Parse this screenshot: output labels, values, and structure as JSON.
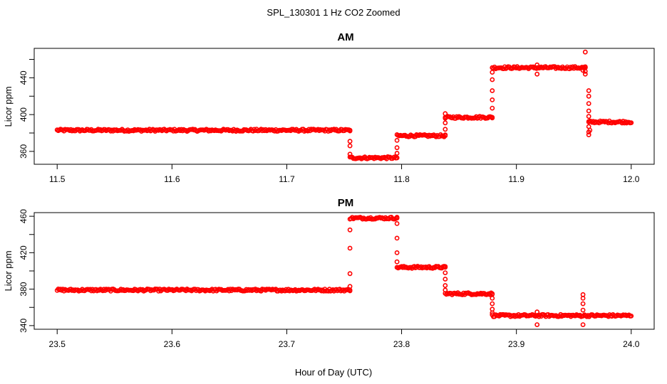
{
  "figure": {
    "title": "SPL_130301  1 Hz CO2 Zoomed",
    "xlabel": "Hour of Day (UTC)"
  },
  "colors": {
    "points": "#ff0000",
    "frame": "#000000",
    "background": "#ffffff"
  },
  "chart_data": [
    {
      "type": "scatter",
      "title": "AM",
      "xlabel": "",
      "ylabel": "Licor ppm",
      "xlim": [
        11.5,
        12.0
      ],
      "ylim": [
        346,
        472
      ],
      "xticks": [
        "11.5",
        "11.6",
        "11.7",
        "11.8",
        "11.9",
        "12.0"
      ],
      "yticks": [
        "360",
        "400",
        "440"
      ],
      "grid": false,
      "marker": "open-circle",
      "plateaus": [
        {
          "x": [
            11.5,
            11.755
          ],
          "y": 383
        },
        {
          "x": [
            11.755,
            11.796
          ],
          "y": 353
        },
        {
          "x": [
            11.796,
            11.838
          ],
          "y": 377
        },
        {
          "x": [
            11.838,
            11.879
          ],
          "y": 397
        },
        {
          "x": [
            11.879,
            11.96
          ],
          "y": 451
        },
        {
          "x": [
            11.963,
            12.0
          ],
          "y": 392
        }
      ],
      "transitions": [
        {
          "x": 11.755,
          "y": [
            383,
            371,
            366,
            357
          ]
        },
        {
          "x": 11.796,
          "y": [
            353,
            358,
            364,
            372
          ]
        },
        {
          "x": 11.838,
          "y": [
            377,
            384,
            391,
            396,
            401
          ]
        },
        {
          "x": 11.879,
          "y": [
            397,
            407,
            416,
            426,
            438,
            446
          ]
        },
        {
          "x": 11.96,
          "y": [
            451,
            468,
            452,
            447,
            444
          ]
        },
        {
          "x": 11.963,
          "y": [
            426,
            420,
            412,
            404,
            398,
            392,
            387,
            381,
            378
          ]
        }
      ],
      "outliers": [
        {
          "x": 11.918,
          "y": 454
        },
        {
          "x": 11.918,
          "y": 444
        },
        {
          "x": 11.958,
          "y": 448
        },
        {
          "x": 11.964,
          "y": 383
        }
      ]
    },
    {
      "type": "scatter",
      "title": "PM",
      "xlabel": "",
      "ylabel": "Licor ppm",
      "xlim": [
        23.5,
        24.0
      ],
      "ylim": [
        336,
        464
      ],
      "xticks": [
        "23.5",
        "23.6",
        "23.7",
        "23.8",
        "23.9",
        "24.0"
      ],
      "yticks": [
        "340",
        "380",
        "420",
        "460"
      ],
      "grid": false,
      "marker": "open-circle",
      "plateaus": [
        {
          "x": [
            23.5,
            23.755
          ],
          "y": 379
        },
        {
          "x": [
            23.755,
            23.796
          ],
          "y": 458
        },
        {
          "x": [
            23.796,
            23.838
          ],
          "y": 404
        },
        {
          "x": [
            23.838,
            23.879
          ],
          "y": 375
        },
        {
          "x": [
            23.879,
            24.0
          ],
          "y": 351
        }
      ],
      "transitions": [
        {
          "x": 23.755,
          "y": [
            379,
            383,
            397,
            425,
            445
          ]
        },
        {
          "x": 23.796,
          "y": [
            458,
            452,
            436,
            420,
            410
          ]
        },
        {
          "x": 23.838,
          "y": [
            404,
            398,
            391,
            384,
            379
          ]
        },
        {
          "x": 23.879,
          "y": [
            375,
            370,
            364,
            358,
            354
          ]
        }
      ],
      "outliers": [
        {
          "x": 23.918,
          "y": 355
        },
        {
          "x": 23.918,
          "y": 341
        },
        {
          "x": 23.958,
          "y": 374
        },
        {
          "x": 23.958,
          "y": 370
        },
        {
          "x": 23.958,
          "y": 364
        },
        {
          "x": 23.958,
          "y": 357
        },
        {
          "x": 23.958,
          "y": 341
        }
      ]
    }
  ]
}
